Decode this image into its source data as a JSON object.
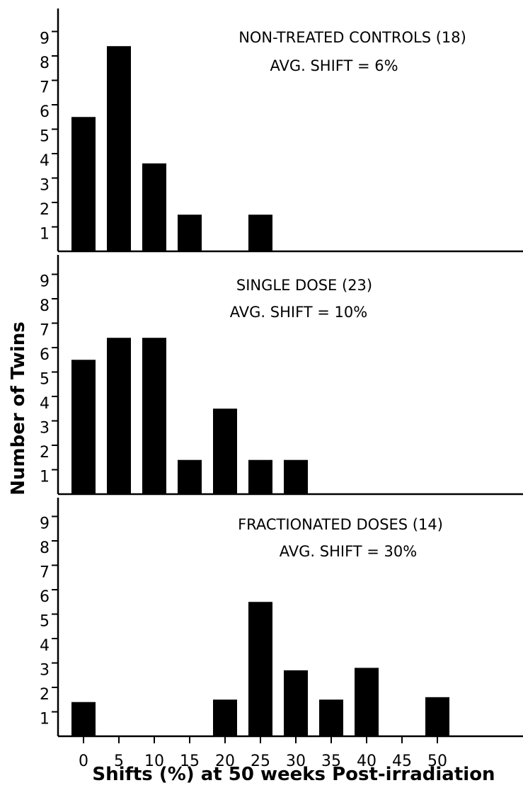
{
  "chart_data": [
    {
      "type": "bar",
      "title": "NON-TREATED CONTROLS (18)",
      "subtitle": "AVG. SHIFT = 6%",
      "x": [
        0,
        5,
        10,
        15,
        25
      ],
      "values": [
        5.5,
        8.4,
        3.6,
        1.5,
        1.5
      ],
      "ylim": [
        0,
        10
      ],
      "yticks": [
        "1",
        "2",
        "3",
        "4",
        "5",
        "6",
        "7",
        "8",
        "9"
      ]
    },
    {
      "type": "bar",
      "title": "SINGLE DOSE (23)",
      "subtitle": "AVG. SHIFT = 10%",
      "x": [
        0,
        5,
        10,
        15,
        20,
        25,
        30
      ],
      "values": [
        5.5,
        6.4,
        6.4,
        1.4,
        3.5,
        1.4,
        1.4
      ],
      "ylim": [
        0,
        10
      ],
      "yticks": [
        "1",
        "2",
        "3",
        "4",
        "5",
        "6",
        "7",
        "8",
        "9"
      ]
    },
    {
      "type": "bar",
      "title": "FRACTIONATED DOSES (14)",
      "subtitle": "AVG. SHIFT = 30%",
      "x": [
        0,
        20,
        25,
        30,
        35,
        40,
        50
      ],
      "values": [
        1.4,
        1.5,
        5.5,
        2.7,
        1.5,
        2.8,
        1.6
      ],
      "ylim": [
        0,
        10
      ],
      "yticks": [
        "1",
        "2",
        "3",
        "4",
        "5",
        "6",
        "7",
        "8",
        "9"
      ]
    }
  ],
  "axes": {
    "ylabel": "Number of Twins",
    "xlabel": "Shifts (%) at 50 weeks Post-irradiation",
    "xticks": [
      "0",
      "5",
      "10",
      "15",
      "20",
      "25",
      "30",
      "35",
      "40",
      "45",
      "50"
    ]
  }
}
